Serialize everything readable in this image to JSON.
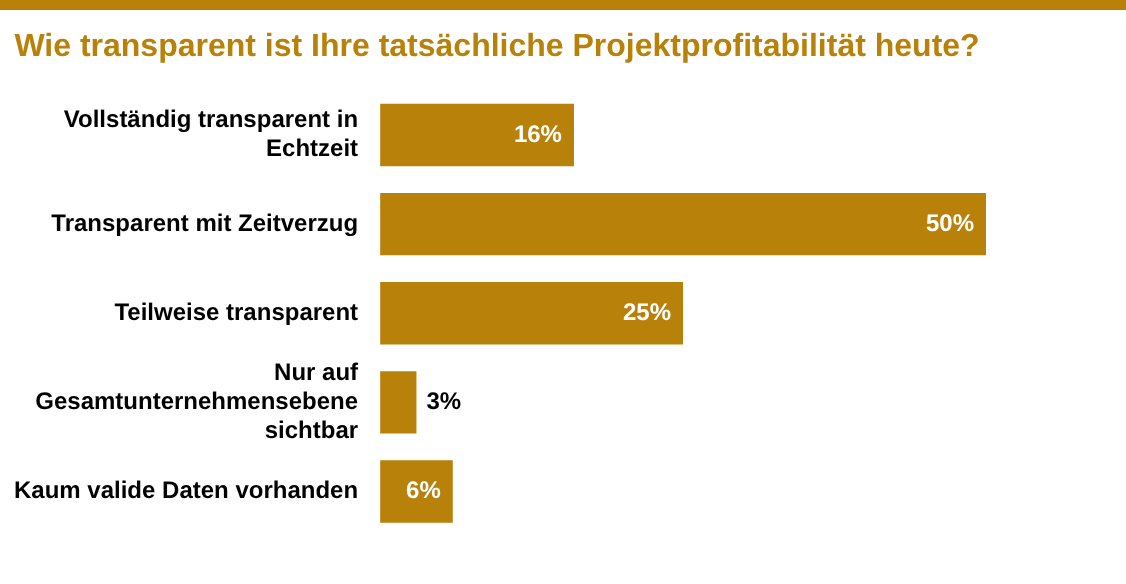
{
  "chart_data": {
    "type": "bar",
    "orientation": "horizontal",
    "title": "Wie transparent ist Ihre tatsächliche Projektprofitabilität heute?",
    "categories": [
      "Vollständig transparent in Echtzeit",
      "Transparent mit Zeitverzug",
      "Teilweise transparent",
      "Nur auf Gesamtunternehmensebene sichtbar",
      "Kaum valide Daten vorhanden"
    ],
    "values": [
      16,
      50,
      25,
      3,
      6
    ],
    "value_labels": [
      "16%",
      "50%",
      "25%",
      "3%",
      "6%"
    ],
    "color": "#b8820a",
    "legend": false
  }
}
